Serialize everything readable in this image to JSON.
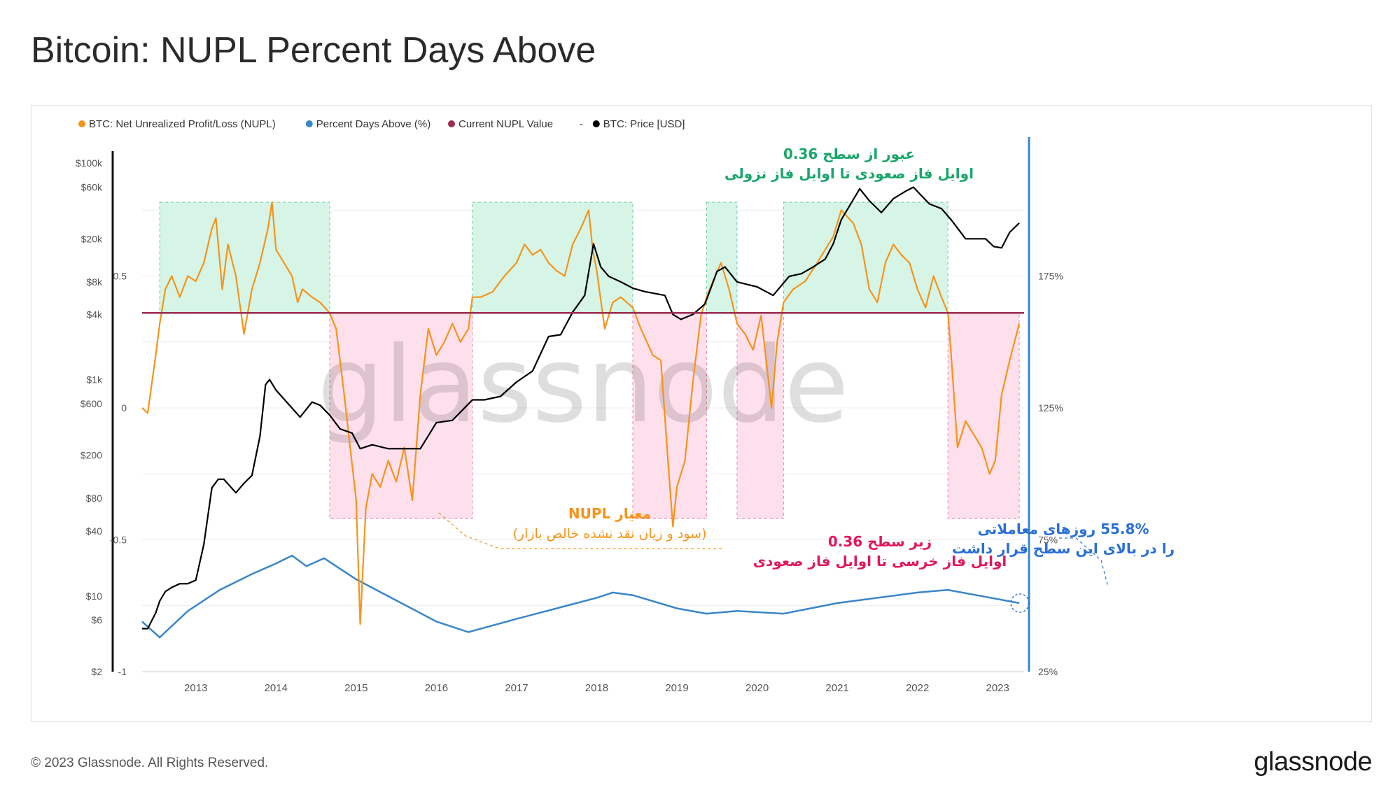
{
  "title": "Bitcoin: NUPL Percent Days Above",
  "footer": "© 2023 Glassnode. All Rights Reserved.",
  "logo": "glassnode",
  "watermark": "glassnode",
  "colors": {
    "nupl": "#f7931a",
    "pct": "#3a86c8",
    "current": "#9b2c4e",
    "price": "#000000",
    "green": "#d6f5e6",
    "pink": "#fde0ec"
  },
  "legend": [
    {
      "label": "BTC: Net Unrealized Profit/Loss (NUPL)",
      "color": "#f7931a"
    },
    {
      "label": "Percent Days Above (%)",
      "color": "#3a86c8"
    },
    {
      "label": "Current NUPL Value",
      "color": "#9b2c4e"
    },
    {
      "label": "-",
      "color": null
    },
    {
      "label": "BTC: Price [USD]",
      "color": "#000000"
    }
  ],
  "annotations": {
    "green_title": "عبور از سطح 0.36",
    "green_sub": "اوایل فاز صعودی تا اوایل فاز نزولی",
    "nupl_title": "معیار NUPL",
    "nupl_sub": "(سود و زیان نقد نشده خالص بازار)",
    "red_title": "زیر سطح 0.36",
    "red_sub": "اوایل فاز خرسی تا اوایل فاز صعودی",
    "blue_title": "55.8% روزهای معاملاتی",
    "blue_sub": "را در بالای این سطح قرار داشت"
  },
  "chart_data": {
    "type": "line",
    "title": "Bitcoin: NUPL Percent Days Above",
    "x_ticks": [
      "2013",
      "2014",
      "2015",
      "2016",
      "2017",
      "2018",
      "2019",
      "2020",
      "2021",
      "2022",
      "2023"
    ],
    "xlim": [
      2012.33,
      2023.33
    ],
    "price_axis": {
      "scale": "log",
      "ticks": [
        "$2",
        "$6",
        "$10",
        "$40",
        "$80",
        "$200",
        "$600",
        "$1k",
        "$4k",
        "$8k",
        "$20k",
        "$60k",
        "$100k"
      ],
      "ylim": [
        2,
        150000
      ]
    },
    "nupl_axis": {
      "ticks": [
        "-1",
        "-0.5",
        "0",
        "0.5"
      ],
      "ylim": [
        -1,
        1
      ]
    },
    "pct_axis": {
      "ticks": [
        "25%",
        "75%",
        "125%",
        "175%"
      ],
      "ylim": [
        25,
        225
      ]
    },
    "current_nupl": 0.36,
    "above_regions": [
      [
        2012.55,
        2014.67
      ],
      [
        2016.45,
        2018.45
      ],
      [
        2019.37,
        2019.75
      ],
      [
        2020.33,
        2022.38
      ]
    ],
    "below_regions": [
      [
        2014.67,
        2016.45
      ],
      [
        2018.45,
        2019.37
      ],
      [
        2019.75,
        2020.33
      ],
      [
        2022.38,
        2023.27
      ]
    ],
    "series": [
      {
        "name": "BTC: Net Unrealized Profit/Loss (NUPL)",
        "x": [
          2012.33,
          2012.4,
          2012.5,
          2012.55,
          2012.62,
          2012.7,
          2012.8,
          2012.9,
          2013.0,
          2013.1,
          2013.2,
          2013.25,
          2013.33,
          2013.4,
          2013.5,
          2013.6,
          2013.7,
          2013.8,
          2013.9,
          2013.95,
          2014.0,
          2014.1,
          2014.2,
          2014.27,
          2014.33,
          2014.45,
          2014.55,
          2014.67,
          2014.75,
          2014.85,
          2015.0,
          2015.05,
          2015.12,
          2015.2,
          2015.3,
          2015.4,
          2015.5,
          2015.6,
          2015.7,
          2015.8,
          2015.9,
          2016.0,
          2016.1,
          2016.2,
          2016.3,
          2016.4,
          2016.45,
          2016.55,
          2016.7,
          2016.85,
          2017.0,
          2017.1,
          2017.2,
          2017.3,
          2017.4,
          2017.5,
          2017.6,
          2017.7,
          2017.8,
          2017.9,
          2017.95,
          2018.0,
          2018.1,
          2018.2,
          2018.3,
          2018.45,
          2018.55,
          2018.7,
          2018.8,
          2018.9,
          2018.95,
          2019.0,
          2019.1,
          2019.2,
          2019.3,
          2019.37,
          2019.45,
          2019.55,
          2019.65,
          2019.75,
          2019.85,
          2019.95,
          2020.05,
          2020.18,
          2020.25,
          2020.33,
          2020.45,
          2020.6,
          2020.75,
          2020.85,
          2020.95,
          2021.05,
          2021.2,
          2021.3,
          2021.4,
          2021.5,
          2021.6,
          2021.7,
          2021.8,
          2021.9,
          2022.0,
          2022.1,
          2022.2,
          2022.3,
          2022.38,
          2022.42,
          2022.5,
          2022.6,
          2022.7,
          2022.8,
          2022.9,
          2022.97,
          2023.05,
          2023.15,
          2023.27
        ],
        "values": [
          0.0,
          -0.02,
          0.2,
          0.32,
          0.45,
          0.5,
          0.42,
          0.5,
          0.48,
          0.55,
          0.68,
          0.72,
          0.45,
          0.62,
          0.5,
          0.28,
          0.45,
          0.55,
          0.68,
          0.78,
          0.6,
          0.55,
          0.5,
          0.4,
          0.45,
          0.42,
          0.4,
          0.36,
          0.3,
          0.05,
          -0.35,
          -0.82,
          -0.38,
          -0.25,
          -0.3,
          -0.2,
          -0.28,
          -0.15,
          -0.35,
          0.05,
          0.3,
          0.2,
          0.25,
          0.32,
          0.25,
          0.3,
          0.42,
          0.42,
          0.44,
          0.5,
          0.55,
          0.62,
          0.58,
          0.6,
          0.55,
          0.52,
          0.5,
          0.62,
          0.68,
          0.75,
          0.6,
          0.52,
          0.3,
          0.4,
          0.42,
          0.38,
          0.3,
          0.2,
          0.18,
          -0.25,
          -0.45,
          -0.3,
          -0.2,
          0.1,
          0.35,
          0.42,
          0.48,
          0.55,
          0.45,
          0.32,
          0.28,
          0.22,
          0.35,
          0.0,
          0.25,
          0.4,
          0.45,
          0.48,
          0.55,
          0.6,
          0.65,
          0.75,
          0.7,
          0.62,
          0.45,
          0.4,
          0.55,
          0.62,
          0.58,
          0.55,
          0.45,
          0.38,
          0.5,
          0.42,
          0.36,
          0.2,
          -0.15,
          -0.05,
          -0.1,
          -0.15,
          -0.25,
          -0.2,
          0.05,
          0.18,
          0.32
        ]
      },
      {
        "name": "BTC: Price [USD]",
        "x": [
          2012.33,
          2012.4,
          2012.5,
          2012.55,
          2012.62,
          2012.7,
          2012.8,
          2012.9,
          2013.0,
          2013.1,
          2013.2,
          2013.28,
          2013.35,
          2013.5,
          2013.6,
          2013.7,
          2013.8,
          2013.87,
          2013.92,
          2014.0,
          2014.15,
          2014.3,
          2014.45,
          2014.55,
          2014.67,
          2014.8,
          2014.95,
          2015.05,
          2015.2,
          2015.4,
          2015.6,
          2015.8,
          2016.0,
          2016.2,
          2016.45,
          2016.6,
          2016.8,
          2017.0,
          2017.2,
          2017.4,
          2017.55,
          2017.7,
          2017.85,
          2017.96,
          2018.05,
          2018.15,
          2018.3,
          2018.45,
          2018.6,
          2018.85,
          2018.95,
          2019.05,
          2019.2,
          2019.35,
          2019.5,
          2019.6,
          2019.75,
          2019.9,
          2020.0,
          2020.2,
          2020.4,
          2020.55,
          2020.7,
          2020.85,
          2020.95,
          2021.05,
          2021.15,
          2021.28,
          2021.4,
          2021.55,
          2021.7,
          2021.85,
          2021.95,
          2022.05,
          2022.15,
          2022.3,
          2022.42,
          2022.6,
          2022.75,
          2022.85,
          2022.95,
          2023.05,
          2023.15,
          2023.27
        ],
        "values": [
          5,
          5,
          7,
          9,
          11,
          12,
          13,
          13,
          14,
          30,
          100,
          120,
          120,
          90,
          110,
          130,
          300,
          900,
          1000,
          800,
          600,
          450,
          620,
          580,
          470,
          350,
          320,
          230,
          250,
          230,
          230,
          230,
          400,
          420,
          650,
          650,
          700,
          950,
          1200,
          2500,
          2600,
          4200,
          6000,
          18000,
          11000,
          9000,
          8000,
          7000,
          6500,
          6000,
          4000,
          3600,
          4000,
          5000,
          10000,
          11000,
          8000,
          7500,
          7200,
          6000,
          9000,
          9500,
          11000,
          13000,
          18000,
          30000,
          40000,
          58000,
          45000,
          35000,
          47000,
          55000,
          60000,
          50000,
          42000,
          38000,
          30000,
          20000,
          20000,
          20000,
          17000,
          16500,
          23000,
          28000
        ]
      },
      {
        "name": "Percent Days Above (%)",
        "x": [
          2012.33,
          2012.55,
          2012.9,
          2013.3,
          2013.7,
          2014.0,
          2014.2,
          2014.38,
          2014.6,
          2015.0,
          2016.0,
          2016.4,
          2017.0,
          2017.5,
          2018.0,
          2018.2,
          2018.45,
          2019.0,
          2019.37,
          2019.75,
          2020.33,
          2021.0,
          2022.0,
          2022.38,
          2023.27
        ],
        "values": [
          44,
          38,
          48,
          56,
          62,
          66,
          69,
          65,
          68,
          60,
          44,
          40,
          45,
          49,
          53,
          55,
          54,
          49,
          47,
          48,
          47,
          51,
          55,
          56,
          51
        ]
      }
    ]
  }
}
